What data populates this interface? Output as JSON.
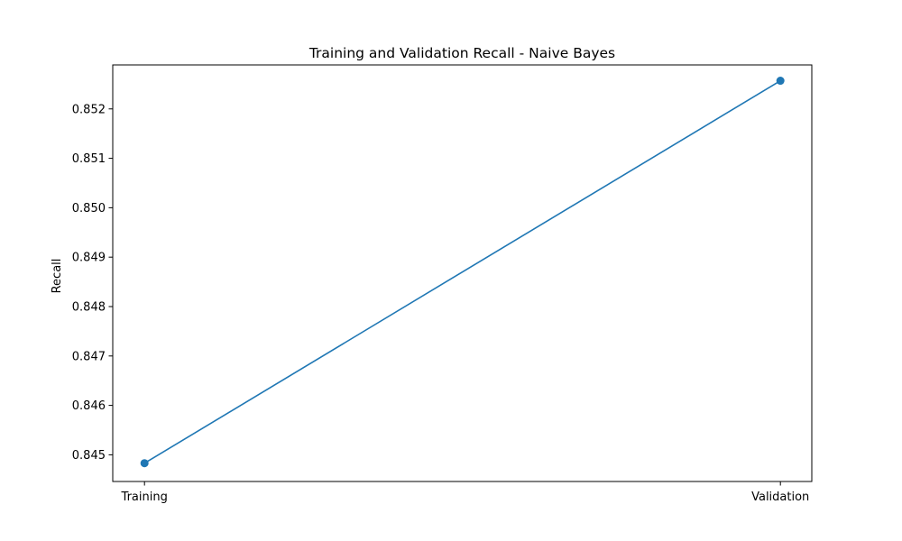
{
  "chart_data": {
    "type": "line",
    "title": "Training and Validation Recall - Naive Bayes",
    "xlabel": "",
    "ylabel": "Recall",
    "categories": [
      "Training",
      "Validation"
    ],
    "series": [
      {
        "name": "Recall",
        "values": [
          0.84483,
          0.85257
        ],
        "color": "#1f77b4",
        "marker": "circle"
      }
    ],
    "ylim": [
      0.84446,
      0.85289
    ],
    "yticks": [
      0.845,
      0.846,
      0.847,
      0.848,
      0.849,
      0.85,
      0.851,
      0.852
    ],
    "ytick_labels": [
      "0.845",
      "0.846",
      "0.847",
      "0.848",
      "0.849",
      "0.850",
      "0.851",
      "0.852"
    ],
    "grid": false,
    "legend": null
  }
}
